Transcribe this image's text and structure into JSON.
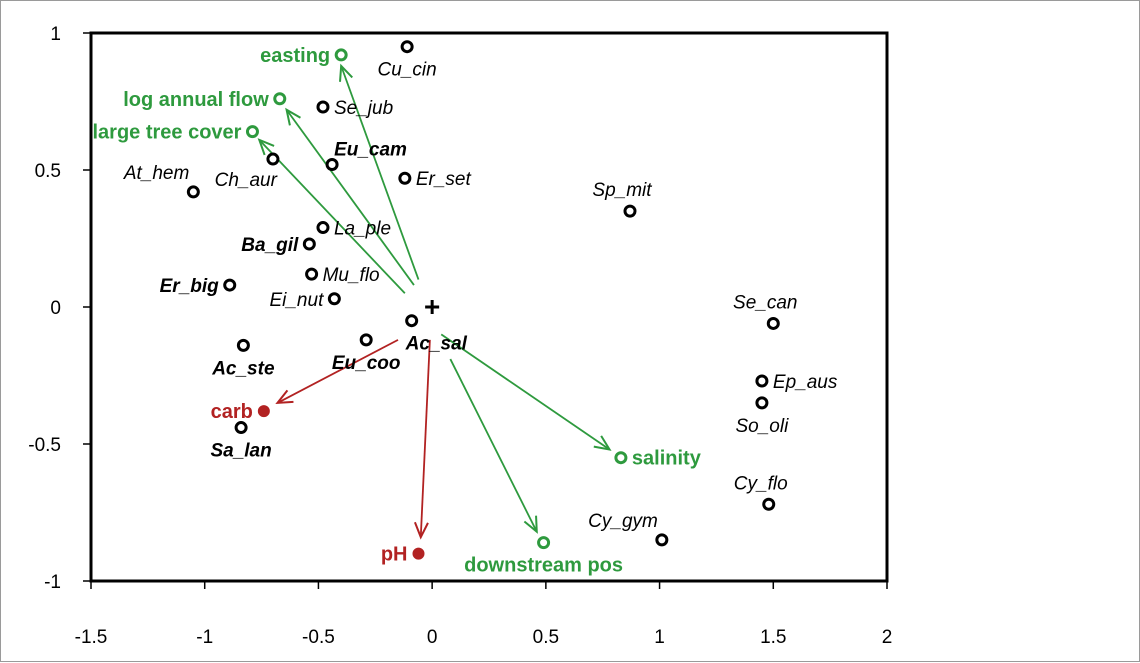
{
  "chart_data": {
    "type": "scatter",
    "title": "",
    "xlabel": "",
    "ylabel": "",
    "xlim": [
      -1.5,
      2
    ],
    "ylim": [
      -1,
      1
    ],
    "x_ticks": [
      "-1.5",
      "-1",
      "-0.5",
      "0",
      "0.5",
      "1",
      "1.5",
      "2"
    ],
    "y_ticks": [
      "1",
      "0.5",
      "0",
      "-0.5",
      "-1"
    ],
    "grid": false,
    "legend": "none",
    "origin_marker": "+",
    "colors": {
      "species": "#000000",
      "green": "#2e9a3e",
      "red": "#b22222"
    },
    "species": [
      {
        "label": "Cu_cin",
        "x": -0.11,
        "y": 0.95,
        "bold": false,
        "label_pos": "below"
      },
      {
        "label": "Se_jub",
        "x": -0.48,
        "y": 0.73,
        "bold": false,
        "label_pos": "right"
      },
      {
        "label": "Eu_cam",
        "x": -0.44,
        "y": 0.52,
        "bold": true,
        "label_pos": "above-right"
      },
      {
        "label": "Er_set",
        "x": -0.12,
        "y": 0.47,
        "bold": false,
        "label_pos": "right"
      },
      {
        "label": "Ch_aur",
        "x": -0.7,
        "y": 0.54,
        "bold": false,
        "label_pos": "below-left"
      },
      {
        "label": "At_hem",
        "x": -1.05,
        "y": 0.42,
        "bold": false,
        "label_pos": "above-left"
      },
      {
        "label": "La_ple",
        "x": -0.48,
        "y": 0.29,
        "bold": false,
        "label_pos": "right"
      },
      {
        "label": "Ba_gil",
        "x": -0.54,
        "y": 0.23,
        "bold": true,
        "label_pos": "left"
      },
      {
        "label": "Mu_flo",
        "x": -0.53,
        "y": 0.12,
        "bold": false,
        "label_pos": "right"
      },
      {
        "label": "Er_big",
        "x": -0.89,
        "y": 0.08,
        "bold": true,
        "label_pos": "left"
      },
      {
        "label": "Ei_nut",
        "x": -0.43,
        "y": 0.03,
        "bold": false,
        "label_pos": "left"
      },
      {
        "label": "Ac_sal",
        "x": -0.09,
        "y": -0.05,
        "bold": true,
        "label_pos": "below-right"
      },
      {
        "label": "Eu_coo",
        "x": -0.29,
        "y": -0.12,
        "bold": true,
        "label_pos": "below"
      },
      {
        "label": "Ac_ste",
        "x": -0.83,
        "y": -0.14,
        "bold": true,
        "label_pos": "below"
      },
      {
        "label": "Sa_lan",
        "x": -0.84,
        "y": -0.44,
        "bold": true,
        "label_pos": "below"
      },
      {
        "label": "Sp_mit",
        "x": 0.87,
        "y": 0.35,
        "bold": false,
        "label_pos": "above"
      },
      {
        "label": "Se_can",
        "x": 1.5,
        "y": -0.06,
        "bold": false,
        "label_pos": "above"
      },
      {
        "label": "Ep_aus",
        "x": 1.45,
        "y": -0.27,
        "bold": false,
        "label_pos": "right"
      },
      {
        "label": "So_oli",
        "x": 1.45,
        "y": -0.35,
        "bold": false,
        "label_pos": "below"
      },
      {
        "label": "Cy_flo",
        "x": 1.48,
        "y": -0.72,
        "bold": false,
        "label_pos": "above"
      },
      {
        "label": "Cy_gym",
        "x": 1.01,
        "y": -0.85,
        "bold": false,
        "label_pos": "above-left"
      }
    ],
    "environment": [
      {
        "label": "easting",
        "x": -0.4,
        "y": 0.92,
        "color": "green",
        "label_pos": "left"
      },
      {
        "label": "log annual flow",
        "x": -0.67,
        "y": 0.76,
        "color": "green",
        "label_pos": "left"
      },
      {
        "label": "large tree cover",
        "x": -0.79,
        "y": 0.64,
        "color": "green",
        "label_pos": "left"
      },
      {
        "label": "salinity",
        "x": 0.83,
        "y": -0.55,
        "color": "green",
        "label_pos": "right"
      },
      {
        "label": "downstream pos",
        "x": 0.49,
        "y": -0.86,
        "color": "green",
        "label_pos": "below"
      },
      {
        "label": "carb",
        "x": -0.74,
        "y": -0.38,
        "color": "red",
        "label_pos": "left"
      },
      {
        "label": "pH",
        "x": -0.06,
        "y": -0.9,
        "color": "red",
        "label_pos": "left"
      }
    ],
    "arrows": [
      {
        "from": [
          -0.06,
          0.1
        ],
        "to": [
          -0.4,
          0.88
        ],
        "color": "green"
      },
      {
        "from": [
          -0.08,
          0.08
        ],
        "to": [
          -0.64,
          0.72
        ],
        "color": "green"
      },
      {
        "from": [
          -0.12,
          0.05
        ],
        "to": [
          -0.76,
          0.61
        ],
        "color": "green"
      },
      {
        "from": [
          0.04,
          -0.1
        ],
        "to": [
          0.78,
          -0.52
        ],
        "color": "green"
      },
      {
        "from": [
          0.08,
          -0.19
        ],
        "to": [
          0.46,
          -0.82
        ],
        "color": "green"
      },
      {
        "from": [
          -0.15,
          -0.12
        ],
        "to": [
          -0.68,
          -0.35
        ],
        "color": "red"
      },
      {
        "from": [
          -0.01,
          -0.12
        ],
        "to": [
          -0.05,
          -0.84
        ],
        "color": "red"
      }
    ]
  }
}
